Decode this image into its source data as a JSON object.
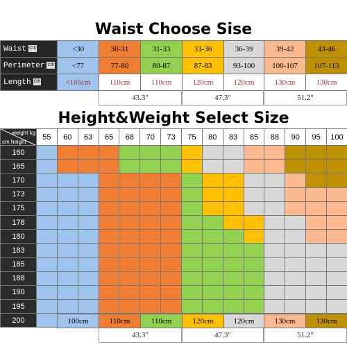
{
  "waist_section": {
    "title": "Waist Choose Sise",
    "rows": [
      {
        "label": "Waist",
        "unit": "cm",
        "cells": [
          "<30",
          "30-31",
          "31-33",
          "33-36",
          "36-39",
          "39-42",
          "43-46"
        ]
      },
      {
        "label": "Perimeter",
        "unit": "cm",
        "cells": [
          "<77",
          "77-80",
          "80-87",
          "87-83",
          "93-100",
          "100-107",
          "107-113"
        ]
      },
      {
        "label": "Length",
        "unit": "cm",
        "cells": [
          "<105cm",
          "110cm",
          "110cm",
          "120cm",
          "120cm",
          "130cm",
          "130cm"
        ]
      }
    ],
    "inches": [
      "43.3″",
      "47.3″",
      "51.2″"
    ]
  },
  "hw_section": {
    "title": "Height&Weight Select Size",
    "corner_weight": "weight kg",
    "corner_height": "cm height",
    "weights": [
      "55",
      "60",
      "63",
      "65",
      "68",
      "70",
      "73",
      "75",
      "80",
      "83",
      "85",
      "88",
      "90",
      "95",
      "100"
    ],
    "heights": [
      "160",
      "165",
      "170",
      "173",
      "175",
      "178",
      "180",
      "183",
      "185",
      "188",
      "190",
      "195",
      "200"
    ],
    "grid": [
      [
        0,
        1,
        1,
        1,
        2,
        2,
        2,
        3,
        4,
        4,
        5,
        5,
        6,
        6,
        6
      ],
      [
        0,
        1,
        1,
        1,
        2,
        2,
        2,
        3,
        4,
        4,
        5,
        5,
        6,
        6,
        6
      ],
      [
        0,
        0,
        0,
        1,
        1,
        1,
        1,
        2,
        3,
        3,
        4,
        4,
        5,
        6,
        6
      ],
      [
        0,
        0,
        0,
        1,
        1,
        1,
        1,
        2,
        3,
        3,
        4,
        4,
        5,
        5,
        5
      ],
      [
        0,
        0,
        0,
        1,
        1,
        1,
        1,
        2,
        3,
        3,
        4,
        4,
        5,
        5,
        5
      ],
      [
        0,
        0,
        0,
        1,
        1,
        1,
        1,
        2,
        2,
        3,
        3,
        4,
        4,
        5,
        5
      ],
      [
        0,
        0,
        0,
        1,
        1,
        1,
        1,
        2,
        2,
        2,
        3,
        4,
        4,
        5,
        5
      ],
      [
        0,
        0,
        0,
        1,
        1,
        1,
        1,
        2,
        2,
        2,
        2,
        4,
        4,
        4,
        4
      ],
      [
        0,
        0,
        0,
        1,
        1,
        1,
        1,
        2,
        2,
        2,
        2,
        4,
        4,
        4,
        4
      ],
      [
        0,
        0,
        0,
        1,
        1,
        1,
        1,
        2,
        2,
        2,
        2,
        4,
        4,
        4,
        4
      ],
      [
        0,
        0,
        0,
        1,
        1,
        1,
        1,
        2,
        2,
        2,
        2,
        4,
        4,
        4,
        4
      ],
      [
        0,
        0,
        0,
        1,
        1,
        1,
        1,
        2,
        2,
        2,
        2,
        4,
        4,
        4,
        4
      ],
      [
        0,
        0,
        0,
        1,
        1,
        1,
        1,
        2,
        2,
        2,
        2,
        4,
        4,
        4,
        4
      ]
    ],
    "size_colors": [
      "#9fc5ee",
      "#f07e32",
      "#92d050",
      "#ffc000",
      "#d8d8d8",
      "#fab98e",
      "#bf9000"
    ]
  },
  "bottom_section": {
    "lengths": [
      "100cm",
      "110cm",
      "110cm",
      "120cm",
      "120cm",
      "130cm",
      "130cm"
    ],
    "inches": [
      "43.3″",
      "47.3″",
      "51.2″"
    ]
  },
  "colors": {
    "blue": "#9fc5ee",
    "orange": "#f07e32",
    "green": "#92d050",
    "yellow": "#ffc000",
    "gray": "#d8d8d8",
    "peach": "#fab98e",
    "gold": "#bf9000",
    "dark": "#262626"
  }
}
